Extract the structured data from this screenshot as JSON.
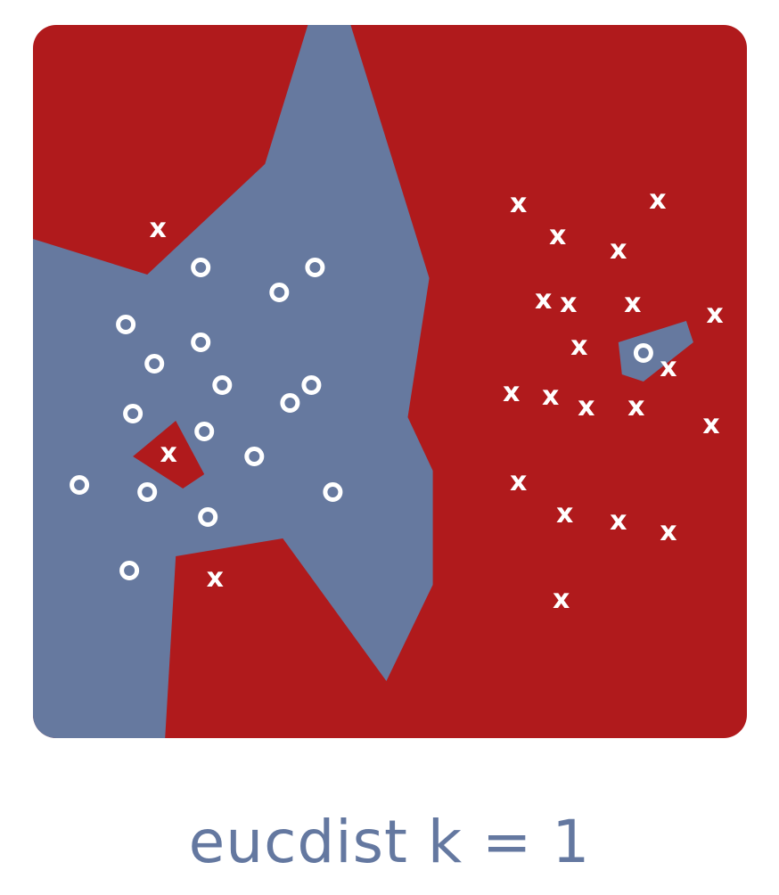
{
  "colors": {
    "class_x_region": "#b01a1c",
    "class_o_region": "#66799f",
    "marker": "#ffffff",
    "caption": "#6478a0",
    "background": "#ffffff"
  },
  "caption": "eucdist k = 1",
  "markers": {
    "x_symbol": "x"
  },
  "chart_data": {
    "type": "scatter",
    "title": "eucdist k = 1",
    "description_method": "k-nearest-neighbour decision regions, k = 1, Euclidean distance",
    "xlim": [
      0,
      100
    ],
    "ylim": [
      0,
      100
    ],
    "series": [
      {
        "name": "x",
        "region_color": "#b01a1c",
        "points": [
          [
            17.5,
            71.5
          ],
          [
            25.5,
            22.5
          ],
          [
            19,
            40
          ],
          [
            68,
            75
          ],
          [
            73.5,
            70.5
          ],
          [
            82,
            68.5
          ],
          [
            87.5,
            75.5
          ],
          [
            71.5,
            61.5
          ],
          [
            75,
            61
          ],
          [
            84,
            61
          ],
          [
            95.5,
            59.5
          ],
          [
            76.5,
            55
          ],
          [
            89,
            52
          ],
          [
            67,
            48.5
          ],
          [
            72.5,
            48
          ],
          [
            77.5,
            46.5
          ],
          [
            84.5,
            46.5
          ],
          [
            95,
            44
          ],
          [
            68,
            36
          ],
          [
            74.5,
            31.5
          ],
          [
            82,
            30.5
          ],
          [
            89,
            29
          ],
          [
            74,
            19.5
          ]
        ]
      },
      {
        "name": "o",
        "region_color": "#66799f",
        "points": [
          [
            23.5,
            66
          ],
          [
            34.5,
            62.5
          ],
          [
            39.5,
            66
          ],
          [
            13,
            58
          ],
          [
            23.5,
            55.5
          ],
          [
            17,
            52.5
          ],
          [
            26.5,
            49.5
          ],
          [
            36,
            47
          ],
          [
            39,
            49.5
          ],
          [
            14,
            45.5
          ],
          [
            24,
            43
          ],
          [
            31,
            39.5
          ],
          [
            6.5,
            35.5
          ],
          [
            16,
            34.5
          ],
          [
            24.5,
            31
          ],
          [
            42,
            34.5
          ],
          [
            13.5,
            23.5
          ],
          [
            85.5,
            54
          ]
        ]
      }
    ],
    "regions": [
      {
        "class": "o",
        "polygon": [
          [
            0,
            70
          ],
          [
            16,
            65
          ],
          [
            32.5,
            80.5
          ],
          [
            38.5,
            100
          ],
          [
            44.5,
            100
          ],
          [
            55.5,
            64.5
          ],
          [
            52.5,
            45
          ],
          [
            56,
            37.5
          ],
          [
            56,
            21.5
          ],
          [
            49.5,
            8
          ],
          [
            35,
            28
          ],
          [
            20,
            25.5
          ],
          [
            18.5,
            0
          ],
          [
            0,
            0
          ]
        ]
      },
      {
        "class": "x",
        "polygon": [
          [
            14,
            39.5
          ],
          [
            20,
            44.5
          ],
          [
            24,
            37
          ],
          [
            21,
            35
          ]
        ]
      },
      {
        "class": "o",
        "polygon": [
          [
            82,
            55.5
          ],
          [
            91.5,
            58.5
          ],
          [
            92.5,
            55.5
          ],
          [
            85.5,
            50
          ],
          [
            82.5,
            51
          ]
        ]
      }
    ]
  }
}
